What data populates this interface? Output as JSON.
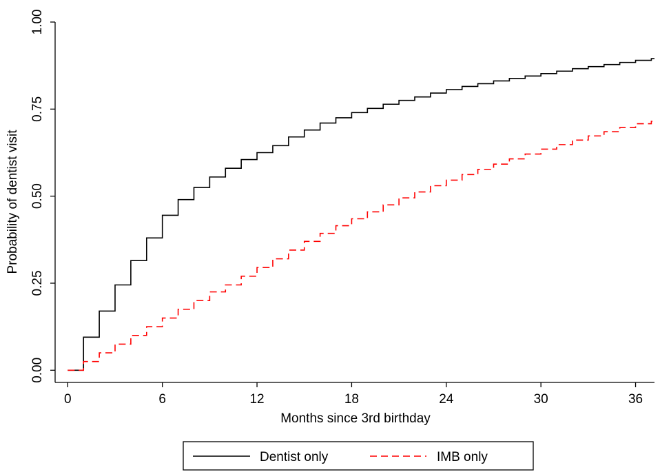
{
  "chart_data": {
    "type": "line",
    "step": true,
    "xlabel": "Months since 3rd birthday",
    "ylabel": "Probability of dentist visit",
    "xlim": [
      -0.8,
      37.2
    ],
    "ylim": [
      -0.035,
      1.0
    ],
    "x_ticks": [
      0,
      6,
      12,
      18,
      24,
      30,
      36
    ],
    "x_tick_labels": [
      "0",
      "6",
      "12",
      "18",
      "24",
      "30",
      "36"
    ],
    "y_ticks": [
      0,
      0.25,
      0.5,
      0.75,
      1.0
    ],
    "y_tick_labels": [
      "0.00",
      "0.25",
      "0.50",
      "0.75",
      "1.00"
    ],
    "grid": false,
    "legend_position": "bottom",
    "series": [
      {
        "name": "Dentist only",
        "color": "#000000",
        "dash": "solid",
        "x": [
          0,
          1,
          2,
          3,
          4,
          5,
          6,
          7,
          8,
          9,
          10,
          11,
          12,
          13,
          14,
          15,
          16,
          17,
          18,
          19,
          20,
          21,
          22,
          23,
          24,
          25,
          26,
          27,
          28,
          29,
          30,
          31,
          32,
          33,
          34,
          35,
          36,
          37
        ],
        "y": [
          0,
          0.095,
          0.17,
          0.245,
          0.315,
          0.38,
          0.445,
          0.49,
          0.525,
          0.555,
          0.58,
          0.605,
          0.625,
          0.645,
          0.67,
          0.69,
          0.71,
          0.725,
          0.74,
          0.752,
          0.764,
          0.775,
          0.785,
          0.796,
          0.806,
          0.815,
          0.823,
          0.831,
          0.838,
          0.845,
          0.852,
          0.859,
          0.866,
          0.872,
          0.878,
          0.884,
          0.89,
          0.895
        ]
      },
      {
        "name": "IMB only",
        "color": "#ff0000",
        "dash": "dashed",
        "x": [
          0,
          1,
          2,
          3,
          4,
          5,
          6,
          7,
          8,
          9,
          10,
          11,
          12,
          13,
          14,
          15,
          16,
          17,
          18,
          19,
          20,
          21,
          22,
          23,
          24,
          25,
          26,
          27,
          28,
          29,
          30,
          31,
          32,
          33,
          34,
          35,
          36,
          37
        ],
        "y": [
          0,
          0.025,
          0.05,
          0.075,
          0.1,
          0.125,
          0.15,
          0.175,
          0.2,
          0.225,
          0.245,
          0.27,
          0.295,
          0.32,
          0.345,
          0.37,
          0.393,
          0.415,
          0.435,
          0.455,
          0.475,
          0.495,
          0.512,
          0.53,
          0.546,
          0.562,
          0.577,
          0.592,
          0.607,
          0.621,
          0.635,
          0.648,
          0.661,
          0.673,
          0.685,
          0.697,
          0.708,
          0.715
        ]
      }
    ]
  }
}
